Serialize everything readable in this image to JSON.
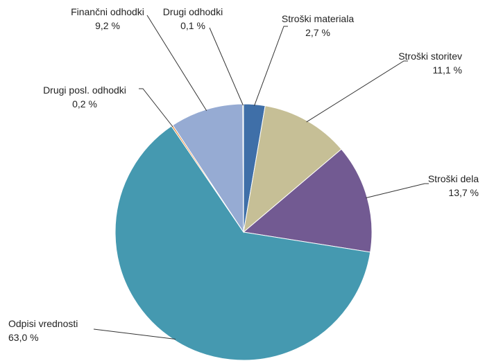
{
  "chart_data": {
    "type": "pie",
    "slices": [
      {
        "name": "Stroški materiala",
        "value": 2.7,
        "value_label": "2,7 %",
        "color": "#3f6fa8"
      },
      {
        "name": "Stroški storitev",
        "value": 11.1,
        "value_label": "11,1 %",
        "color": "#c6bf96"
      },
      {
        "name": "Stroški dela",
        "value": 13.7,
        "value_label": "13,7 %",
        "color": "#725a92"
      },
      {
        "name": "Odpisi vrednosti",
        "value": 63.0,
        "value_label": "63,0 %",
        "color": "#4599b0"
      },
      {
        "name": "Drugi posl. odhodki",
        "value": 0.2,
        "value_label": "0,2 %",
        "color": "#e58a3a"
      },
      {
        "name": "Finančni odhodki",
        "value": 9.2,
        "value_label": "9,2 %",
        "color": "#96abd3"
      },
      {
        "name": "Drugi odhodki",
        "value": 0.1,
        "value_label": "0,1 %",
        "color": "#8fb44e"
      }
    ],
    "start_angle": "12 o'clock",
    "direction": "clockwise",
    "legend": "none",
    "labels": "outside with leader lines"
  }
}
